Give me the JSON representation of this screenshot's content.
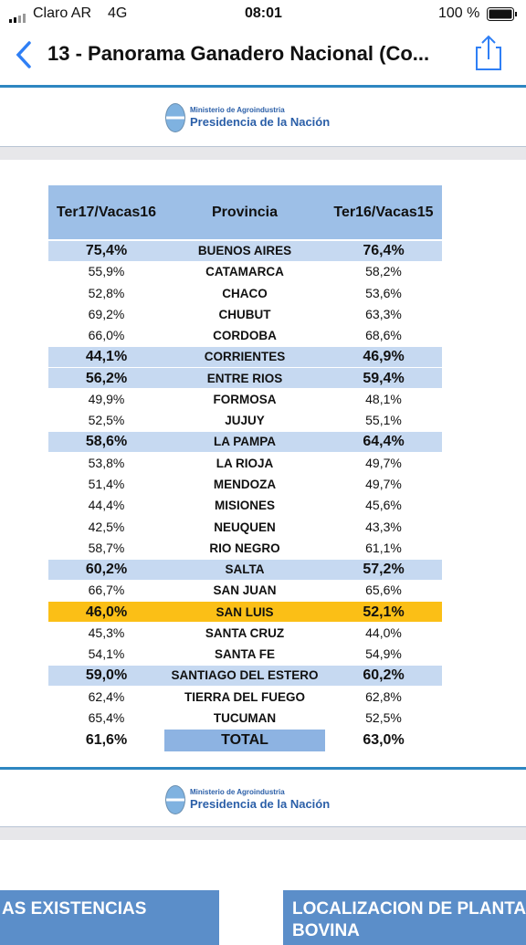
{
  "status_bar": {
    "carrier": "Claro AR",
    "network": "4G",
    "time": "08:01",
    "battery": "100 %"
  },
  "nav": {
    "title": "13 - Panorama Ganadero Nacional (Co..."
  },
  "header_logo": {
    "ministry": "Ministerio de Agroindustria",
    "presidency": "Presidencia de la Nación"
  },
  "table": {
    "headers": [
      "Ter17/Vacas16",
      "Provincia",
      "Ter16/Vacas15"
    ],
    "rows": [
      {
        "cells": [
          "75,4%",
          "BUENOS AIRES",
          "76,4%"
        ],
        "highlight": "blue"
      },
      {
        "cells": [
          "55,9%",
          "CATAMARCA",
          "58,2%"
        ]
      },
      {
        "cells": [
          "52,8%",
          "CHACO",
          "53,6%"
        ]
      },
      {
        "cells": [
          "69,2%",
          "CHUBUT",
          "63,3%"
        ]
      },
      {
        "cells": [
          "66,0%",
          "CORDOBA",
          "68,6%"
        ]
      },
      {
        "cells": [
          "44,1%",
          "CORRIENTES",
          "46,9%"
        ],
        "highlight": "blue"
      },
      {
        "cells": [
          "56,2%",
          "ENTRE RIOS",
          "59,4%"
        ],
        "highlight": "blue"
      },
      {
        "cells": [
          "49,9%",
          "FORMOSA",
          "48,1%"
        ]
      },
      {
        "cells": [
          "52,5%",
          "JUJUY",
          "55,1%"
        ]
      },
      {
        "cells": [
          "58,6%",
          "LA PAMPA",
          "64,4%"
        ],
        "highlight": "blue"
      },
      {
        "cells": [
          "53,8%",
          "LA RIOJA",
          "49,7%"
        ]
      },
      {
        "cells": [
          "51,4%",
          "MENDOZA",
          "49,7%"
        ]
      },
      {
        "cells": [
          "44,4%",
          "MISIONES",
          "45,6%"
        ]
      },
      {
        "cells": [
          "42,5%",
          "NEUQUEN",
          "43,3%"
        ]
      },
      {
        "cells": [
          "58,7%",
          "RIO NEGRO",
          "61,1%"
        ]
      },
      {
        "cells": [
          "60,2%",
          "SALTA",
          "57,2%"
        ],
        "highlight": "blue"
      },
      {
        "cells": [
          "66,7%",
          "SAN JUAN",
          "65,6%"
        ]
      },
      {
        "cells": [
          "46,0%",
          "SAN LUIS",
          "52,1%"
        ],
        "highlight": "orange"
      },
      {
        "cells": [
          "45,3%",
          "SANTA CRUZ",
          "44,0%"
        ]
      },
      {
        "cells": [
          "54,1%",
          "SANTA FE",
          "54,9%"
        ]
      },
      {
        "cells": [
          "59,0%",
          "SANTIAGO DEL ESTERO",
          "60,2%"
        ],
        "highlight": "blue"
      },
      {
        "cells": [
          "62,4%",
          "TIERRA DEL FUEGO",
          "62,8%"
        ]
      },
      {
        "cells": [
          "65,4%",
          "TUCUMAN",
          "52,5%"
        ]
      }
    ],
    "total": {
      "cells": [
        "61,6%",
        "TOTAL",
        "63,0%"
      ]
    }
  },
  "footer_logo": {
    "ministry": "Ministerio de Agroindustria",
    "presidency": "Presidencia de la Nación"
  },
  "cards": [
    {
      "lines": [
        "AS EXISTENCIAS"
      ]
    },
    {
      "lines": [
        "LOCALIZACION DE PLANTA",
        "BOVINA"
      ]
    }
  ]
}
